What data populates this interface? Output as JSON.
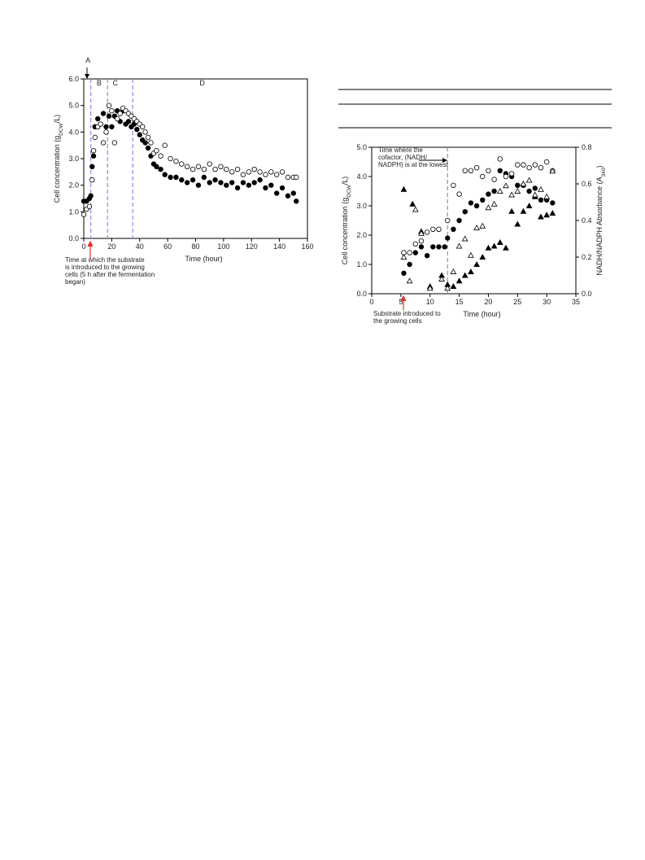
{
  "chart_data": [
    {
      "type": "scatter",
      "xlabel": "Time (hour)",
      "ylabel": [
        "Cell concentration (g",
        "DCW",
        "/L)"
      ],
      "xlim": [
        0,
        160
      ],
      "xticks": [
        0,
        20,
        40,
        60,
        80,
        100,
        120,
        140,
        160
      ],
      "ylim": [
        0,
        6
      ],
      "yticks": [
        {
          "value": 0,
          "label": "0.0"
        },
        {
          "value": 1,
          "label": "1.0"
        },
        {
          "value": 2,
          "label": "2.0"
        },
        {
          "value": 3,
          "label": "3.0"
        },
        {
          "value": 4,
          "label": "4.0"
        },
        {
          "value": 5,
          "label": "5.0"
        },
        {
          "value": 6,
          "label": "6.0"
        }
      ],
      "vlines": [
        5,
        17,
        35
      ],
      "phases": [
        "A",
        "B",
        "C",
        "D"
      ],
      "annotation": [
        "Time at which the substrate",
        "is introduced to the growing",
        "cells (5 h after the fermentation",
        "began)"
      ],
      "series": [
        {
          "marker": "circle",
          "color": "#000000",
          "fill": "#000000",
          "x": [
            0,
            2,
            4,
            5,
            6,
            7,
            8,
            10,
            12,
            14,
            16,
            18,
            20,
            22,
            24,
            26,
            28,
            30,
            32,
            34,
            36,
            38,
            40,
            42,
            44,
            46,
            48,
            50,
            52,
            55,
            58,
            62,
            66,
            70,
            74,
            78,
            82,
            86,
            90,
            94,
            98,
            102,
            106,
            110,
            114,
            118,
            122,
            126,
            130,
            134,
            138,
            142,
            146,
            150,
            152
          ],
          "values": [
            1.4,
            1.4,
            1.5,
            1.6,
            2.7,
            3.1,
            4.2,
            4.5,
            4.3,
            4.7,
            4.2,
            4.6,
            4.2,
            4.6,
            4.8,
            4.4,
            4.8,
            4.3,
            4.4,
            4.2,
            4.3,
            4.1,
            3.9,
            3.7,
            3.6,
            3.4,
            3.1,
            2.8,
            2.7,
            2.6,
            2.4,
            2.3,
            2.3,
            2.2,
            2.1,
            2.2,
            2.0,
            2.3,
            2.1,
            2.2,
            2.1,
            2.0,
            2.1,
            1.9,
            2.1,
            2.0,
            2.1,
            2.2,
            1.9,
            2.0,
            1.7,
            1.9,
            1.6,
            1.7,
            1.4
          ]
        },
        {
          "marker": "circle",
          "color": "#000000",
          "fill": "#ffffff",
          "x": [
            0,
            2,
            4,
            6,
            7,
            8,
            10,
            12,
            14,
            16,
            18,
            20,
            22,
            24,
            26,
            28,
            30,
            32,
            34,
            36,
            38,
            40,
            42,
            44,
            46,
            48,
            50,
            52,
            55,
            58,
            62,
            66,
            70,
            74,
            78,
            82,
            86,
            90,
            94,
            98,
            102,
            106,
            110,
            114,
            118,
            122,
            126,
            130,
            134,
            138,
            142,
            146,
            150,
            152
          ],
          "values": [
            0.9,
            1.1,
            1.2,
            2.2,
            3.3,
            3.8,
            4.2,
            4.3,
            3.6,
            4.0,
            5.0,
            4.8,
            3.6,
            4.5,
            4.7,
            4.9,
            4.8,
            4.7,
            4.6,
            4.5,
            4.4,
            4.3,
            4.2,
            4.0,
            3.8,
            3.6,
            3.2,
            3.3,
            3.1,
            3.5,
            3.0,
            2.9,
            2.8,
            2.7,
            2.6,
            2.7,
            2.6,
            2.8,
            2.6,
            2.7,
            2.6,
            2.5,
            2.6,
            2.4,
            2.5,
            2.6,
            2.5,
            2.4,
            2.5,
            2.4,
            2.5,
            2.3,
            2.3,
            2.3
          ]
        }
      ]
    },
    {
      "type": "scatter",
      "xlabel": "Time (hour)",
      "ylabel": [
        "Cell concentration (g",
        "DCW",
        "/L)"
      ],
      "y2label": [
        "NADH/NADPH Absorbance (A",
        "340",
        ")"
      ],
      "xlim": [
        0,
        35
      ],
      "xticks": [
        0,
        5,
        10,
        15,
        20,
        25,
        30,
        35
      ],
      "ylim": [
        0,
        5
      ],
      "yticks": [
        {
          "value": 0,
          "label": "0.0"
        },
        {
          "value": 1,
          "label": "1.0"
        },
        {
          "value": 2,
          "label": "2.0"
        },
        {
          "value": 3,
          "label": "3.0"
        },
        {
          "value": 4,
          "label": "4.0"
        },
        {
          "value": 5,
          "label": "5.0"
        }
      ],
      "y2lim": [
        0,
        0.8
      ],
      "y2ticks": [
        {
          "value": 0,
          "label": "0.0"
        },
        0.2,
        0.4,
        0.6,
        0.8
      ],
      "vlines": [
        13
      ],
      "annotations": [
        [
          "Time where the",
          "cofactor, (NADH/",
          "NADPH) is at the lowest"
        ],
        [
          "Substrate introduced to",
          "the growing cells"
        ]
      ],
      "series": [
        {
          "marker": "circle",
          "color": "#000000",
          "fill": "#000000",
          "x": [
            5.5,
            6.5,
            7.5,
            8.5,
            9.5,
            10.5,
            11.5,
            12.5,
            13,
            14,
            15,
            16,
            17,
            18,
            19,
            20,
            21,
            22,
            23,
            24,
            25,
            26,
            27,
            28,
            29,
            30,
            31
          ],
          "values": [
            0.7,
            1.0,
            1.4,
            1.6,
            1.3,
            1.6,
            1.6,
            1.6,
            1.9,
            2.2,
            2.5,
            2.8,
            3.1,
            3.0,
            3.2,
            3.4,
            3.5,
            4.2,
            4.1,
            4.0,
            3.7,
            3.7,
            3.5,
            3.6,
            3.2,
            3.2,
            3.1
          ]
        },
        {
          "marker": "circle",
          "color": "#000000",
          "fill": "#ffffff",
          "x": [
            5.5,
            6.5,
            7.5,
            8.5,
            9.5,
            10.5,
            11.5,
            13,
            14,
            15,
            16,
            17,
            18,
            19,
            20,
            21,
            22,
            23,
            24,
            25,
            26,
            27,
            28,
            29,
            30,
            31
          ],
          "values": [
            1.4,
            1.4,
            1.7,
            1.8,
            2.1,
            2.2,
            2.2,
            2.5,
            3.7,
            3.4,
            4.2,
            4.2,
            4.3,
            4.0,
            4.2,
            3.9,
            4.6,
            4.0,
            4.1,
            4.4,
            4.4,
            4.3,
            4.4,
            4.3,
            4.5,
            4.2
          ]
        },
        {
          "marker": "triangle",
          "color": "#000000",
          "fill": "#000000",
          "axis": "y2",
          "x": [
            5.5,
            7,
            8.5,
            10,
            12,
            13,
            14,
            15,
            16,
            17,
            18,
            19,
            20,
            21,
            22,
            23,
            24,
            25,
            26,
            27,
            28,
            29,
            30,
            31
          ],
          "values": [
            0.57,
            0.49,
            0.34,
            0.04,
            0.1,
            0.05,
            0.04,
            0.07,
            0.1,
            0.12,
            0.16,
            0.2,
            0.25,
            0.26,
            0.28,
            0.25,
            0.45,
            0.38,
            0.45,
            0.48,
            0.53,
            0.42,
            0.43,
            0.44
          ]
        },
        {
          "marker": "triangle",
          "color": "#000000",
          "fill": "#ffffff",
          "axis": "y2",
          "x": [
            5.5,
            6.5,
            7.5,
            8.5,
            10,
            12,
            13,
            14,
            15,
            16,
            17,
            18,
            19,
            20,
            21,
            22,
            23,
            24,
            25,
            26,
            27,
            28,
            29,
            30,
            31
          ],
          "values": [
            0.2,
            0.07,
            0.46,
            0.33,
            0.03,
            0.08,
            0.03,
            0.12,
            0.26,
            0.3,
            0.21,
            0.36,
            0.37,
            0.47,
            0.49,
            0.56,
            0.59,
            0.54,
            0.56,
            0.6,
            0.62,
            0.54,
            0.57,
            0.53,
            0.67
          ]
        }
      ]
    }
  ]
}
